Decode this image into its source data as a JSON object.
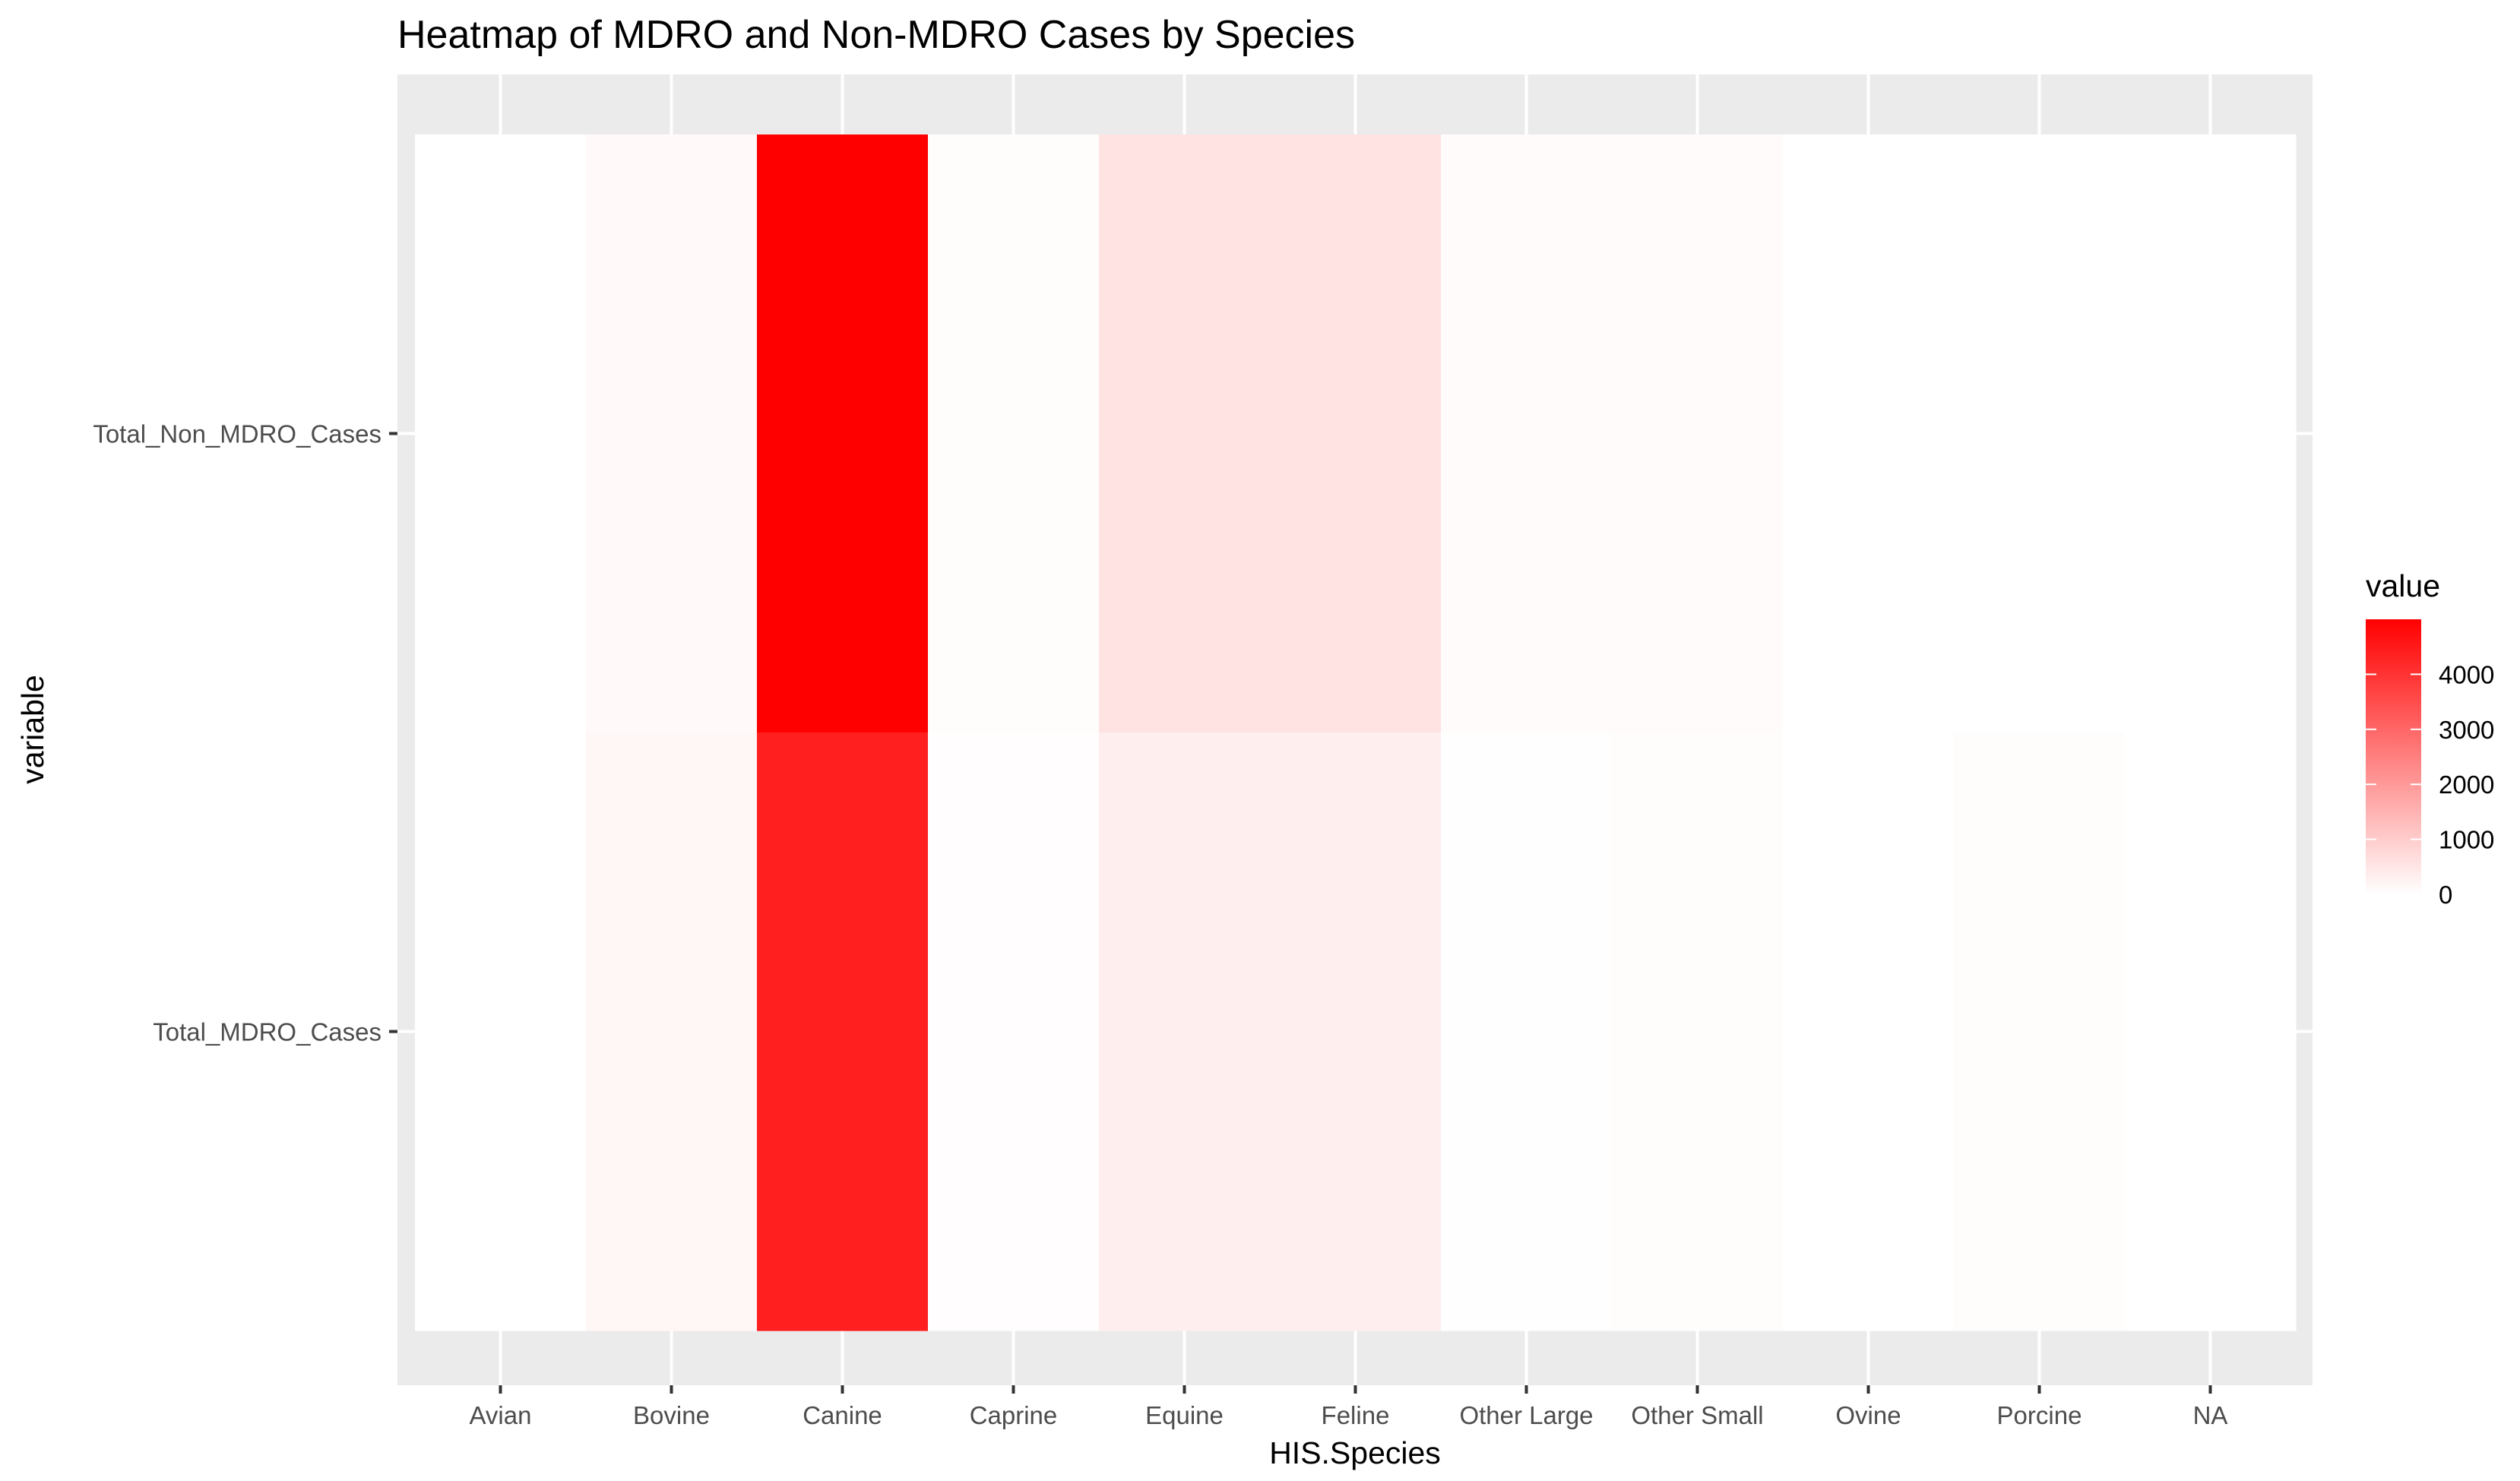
{
  "chart_data": {
    "type": "heatmap",
    "title": "Heatmap of MDRO and Non-MDRO Cases by Species",
    "xlabel": "HIS.Species",
    "ylabel": "variable",
    "x_categories": [
      "Avian",
      "Bovine",
      "Canine",
      "Caprine",
      "Equine",
      "Feline",
      "Other Large",
      "Other Small",
      "Ovine",
      "Porcine",
      "NA"
    ],
    "y_categories": [
      "Total_MDRO_Cases",
      "Total_Non_MDRO_Cases"
    ],
    "cells": [
      {
        "x": "Avian",
        "y": "Total_Non_MDRO_Cases",
        "value": 0
      },
      {
        "x": "Bovine",
        "y": "Total_Non_MDRO_Cases",
        "value": 110
      },
      {
        "x": "Canine",
        "y": "Total_Non_MDRO_Cases",
        "value": 5000
      },
      {
        "x": "Caprine",
        "y": "Total_Non_MDRO_Cases",
        "value": 50
      },
      {
        "x": "Equine",
        "y": "Total_Non_MDRO_Cases",
        "value": 560
      },
      {
        "x": "Feline",
        "y": "Total_Non_MDRO_Cases",
        "value": 560
      },
      {
        "x": "Other Large",
        "y": "Total_Non_MDRO_Cases",
        "value": 70
      },
      {
        "x": "Other Small",
        "y": "Total_Non_MDRO_Cases",
        "value": 70
      },
      {
        "x": "Ovine",
        "y": "Total_Non_MDRO_Cases",
        "value": 0
      },
      {
        "x": "Porcine",
        "y": "Total_Non_MDRO_Cases",
        "value": 0
      },
      {
        "x": "NA",
        "y": "Total_Non_MDRO_Cases",
        "value": 0
      },
      {
        "x": "Avian",
        "y": "Total_MDRO_Cases",
        "value": 0
      },
      {
        "x": "Bovine",
        "y": "Total_MDRO_Cases",
        "value": 170
      },
      {
        "x": "Canine",
        "y": "Total_MDRO_Cases",
        "value": 4400
      },
      {
        "x": "Caprine",
        "y": "Total_MDRO_Cases",
        "value": 30
      },
      {
        "x": "Equine",
        "y": "Total_MDRO_Cases",
        "value": 330
      },
      {
        "x": "Feline",
        "y": "Total_MDRO_Cases",
        "value": 330
      },
      {
        "x": "Other Large",
        "y": "Total_MDRO_Cases",
        "value": 20
      },
      {
        "x": "Other Small",
        "y": "Total_MDRO_Cases",
        "value": 50
      },
      {
        "x": "Ovine",
        "y": "Total_MDRO_Cases",
        "value": 0
      },
      {
        "x": "Porcine",
        "y": "Total_MDRO_Cases",
        "value": 60
      },
      {
        "x": "NA",
        "y": "Total_MDRO_Cases",
        "value": 0
      }
    ],
    "color_scale": {
      "low": "#ffffff",
      "high": "#ff0000",
      "min": 0,
      "max": 5000
    },
    "legend": {
      "title": "value",
      "placement": "right",
      "ticks": [
        0,
        1000,
        2000,
        3000,
        4000
      ],
      "tick_labels": [
        "0",
        "1000",
        "2000",
        "3000",
        "4000"
      ]
    },
    "panel_background": "#ebebeb",
    "gridline_color": "#ffffff",
    "grid": true
  }
}
